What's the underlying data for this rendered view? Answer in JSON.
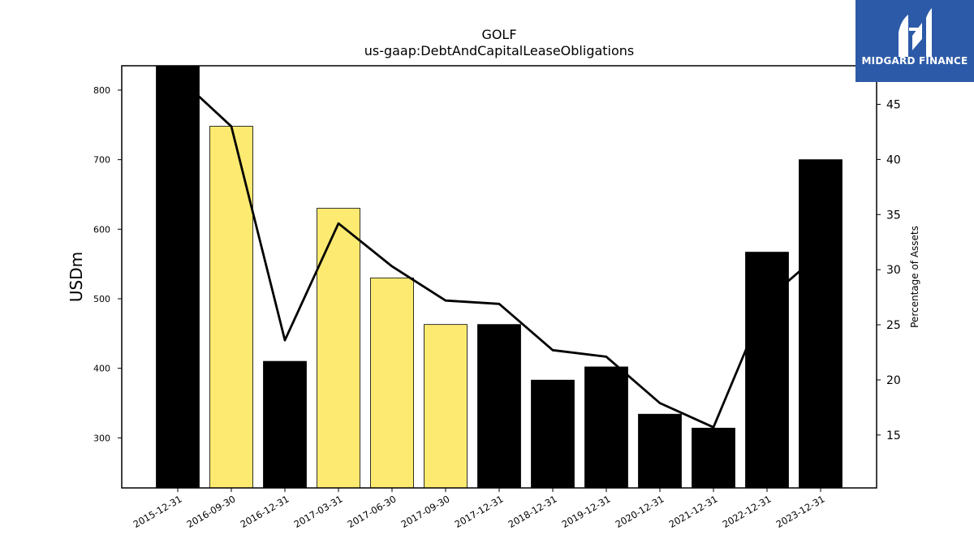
{
  "chart_data": {
    "type": "bar",
    "title": "GOLF",
    "subtitle": "us-gaap:DebtAndCapitalLeaseObligations",
    "ylabel": "USDm",
    "y2label": "Percentage of Assets",
    "categories": [
      "2015-12-31",
      "2016-09-30",
      "2016-12-31",
      "2017-03-31",
      "2017-06-30",
      "2017-09-30",
      "2017-12-31",
      "2018-12-31",
      "2019-12-31",
      "2020-12-31",
      "2021-12-31",
      "2022-12-31",
      "2023-12-31"
    ],
    "series": [
      {
        "values": [
          835,
          748,
          410,
          630,
          530,
          463,
          463,
          383,
          402,
          334,
          314,
          567,
          700
        ],
        "colors": [
          "#000000",
          "#fdea71",
          "#000000",
          "#fdea71",
          "#fdea71",
          "#fdea71",
          "#000000",
          "#000000",
          "#000000",
          "#000000",
          "#000000",
          "#000000",
          "#000000"
        ]
      },
      {
        "type": "line",
        "axis": "right",
        "color": "#000000",
        "values": [
          47.5,
          43.0,
          23.6,
          34.2,
          30.3,
          27.2,
          26.9,
          22.7,
          22.1,
          17.9,
          15.7,
          27.3,
          31.5
        ]
      }
    ],
    "ylim": [
      228,
      835
    ],
    "yticks": [
      300,
      400,
      500,
      600,
      700,
      800
    ],
    "y2lim": [
      10.2,
      48.5
    ],
    "y2ticks": [
      15,
      20,
      25,
      30,
      35,
      40,
      45
    ],
    "grid": false
  },
  "logo": {
    "text": "MIDGARD FINANCE"
  }
}
